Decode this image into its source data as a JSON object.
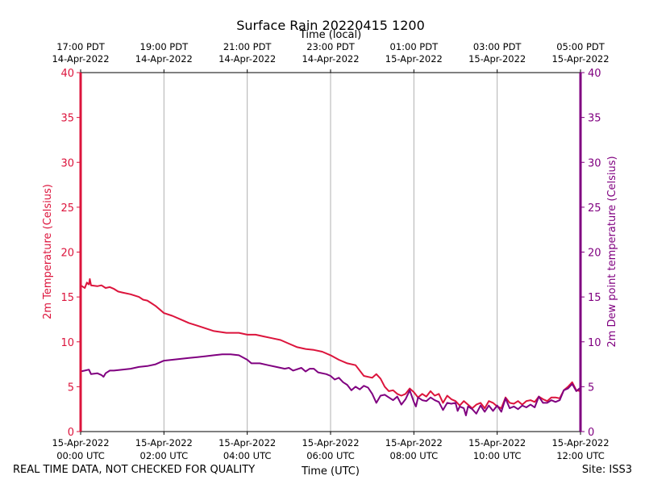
{
  "chart_data": {
    "type": "line",
    "title": "Surface Rain 20220415 1200",
    "top_axis_label": "Time (local)",
    "xlabel": "Time (UTC)",
    "ylabel_left": "2m Temperature (Celsius)",
    "ylabel_right": "2m Dew point temperature (Celsius)",
    "ylim": [
      0,
      40
    ],
    "xlim_hours": [
      0,
      12
    ],
    "y_ticks": [
      "0",
      "5",
      "10",
      "15",
      "20",
      "25",
      "30",
      "35",
      "40"
    ],
    "x_ticks_bottom": [
      {
        "hour": 0,
        "line1": "15-Apr-2022",
        "line2": "00:00 UTC"
      },
      {
        "hour": 2,
        "line1": "15-Apr-2022",
        "line2": "02:00 UTC"
      },
      {
        "hour": 4,
        "line1": "15-Apr-2022",
        "line2": "04:00 UTC"
      },
      {
        "hour": 6,
        "line1": "15-Apr-2022",
        "line2": "06:00 UTC"
      },
      {
        "hour": 8,
        "line1": "15-Apr-2022",
        "line2": "08:00 UTC"
      },
      {
        "hour": 10,
        "line1": "15-Apr-2022",
        "line2": "10:00 UTC"
      },
      {
        "hour": 12,
        "line1": "15-Apr-2022",
        "line2": "12:00 UTC"
      }
    ],
    "x_ticks_top": [
      {
        "hour": 0,
        "line1": "17:00 PDT",
        "line2": "14-Apr-2022"
      },
      {
        "hour": 2,
        "line1": "19:00 PDT",
        "line2": "14-Apr-2022"
      },
      {
        "hour": 4,
        "line1": "21:00 PDT",
        "line2": "14-Apr-2022"
      },
      {
        "hour": 6,
        "line1": "23:00 PDT",
        "line2": "14-Apr-2022"
      },
      {
        "hour": 8,
        "line1": "01:00 PDT",
        "line2": "15-Apr-2022"
      },
      {
        "hour": 10,
        "line1": "03:00 PDT",
        "line2": "15-Apr-2022"
      },
      {
        "hour": 12,
        "line1": "05:00 PDT",
        "line2": "15-Apr-2022"
      }
    ],
    "series": [
      {
        "name": "2m Temperature",
        "color": "#dc143c",
        "axis": "left",
        "points": [
          [
            0,
            16.3
          ],
          [
            0.1,
            16.0
          ],
          [
            0.15,
            16.6
          ],
          [
            0.2,
            16.4
          ],
          [
            0.22,
            17.0
          ],
          [
            0.25,
            16.3
          ],
          [
            0.4,
            16.2
          ],
          [
            0.5,
            16.3
          ],
          [
            0.6,
            16.0
          ],
          [
            0.7,
            16.1
          ],
          [
            0.8,
            15.9
          ],
          [
            0.9,
            15.6
          ],
          [
            1.0,
            15.5
          ],
          [
            1.2,
            15.3
          ],
          [
            1.4,
            15.0
          ],
          [
            1.5,
            14.7
          ],
          [
            1.6,
            14.6
          ],
          [
            1.7,
            14.3
          ],
          [
            1.8,
            14.0
          ],
          [
            1.9,
            13.6
          ],
          [
            2.0,
            13.2
          ],
          [
            2.2,
            12.9
          ],
          [
            2.4,
            12.5
          ],
          [
            2.6,
            12.1
          ],
          [
            2.8,
            11.8
          ],
          [
            3.0,
            11.5
          ],
          [
            3.2,
            11.2
          ],
          [
            3.5,
            11.0
          ],
          [
            3.8,
            11.0
          ],
          [
            4.0,
            10.8
          ],
          [
            4.2,
            10.8
          ],
          [
            4.4,
            10.6
          ],
          [
            4.6,
            10.4
          ],
          [
            4.8,
            10.2
          ],
          [
            5.0,
            9.8
          ],
          [
            5.2,
            9.4
          ],
          [
            5.4,
            9.2
          ],
          [
            5.6,
            9.1
          ],
          [
            5.8,
            8.9
          ],
          [
            6.0,
            8.5
          ],
          [
            6.2,
            8.0
          ],
          [
            6.4,
            7.6
          ],
          [
            6.6,
            7.4
          ],
          [
            6.8,
            6.2
          ],
          [
            7.0,
            6.0
          ],
          [
            7.1,
            6.4
          ],
          [
            7.2,
            5.9
          ],
          [
            7.3,
            5.0
          ],
          [
            7.4,
            4.5
          ],
          [
            7.5,
            4.6
          ],
          [
            7.6,
            4.2
          ],
          [
            7.7,
            4.0
          ],
          [
            7.8,
            4.2
          ],
          [
            7.9,
            4.8
          ],
          [
            8.0,
            4.4
          ],
          [
            8.1,
            3.8
          ],
          [
            8.2,
            4.2
          ],
          [
            8.3,
            3.9
          ],
          [
            8.4,
            4.5
          ],
          [
            8.5,
            4.0
          ],
          [
            8.6,
            4.2
          ],
          [
            8.7,
            3.2
          ],
          [
            8.8,
            4.0
          ],
          [
            8.9,
            3.6
          ],
          [
            9.0,
            3.4
          ],
          [
            9.1,
            2.9
          ],
          [
            9.2,
            3.4
          ],
          [
            9.3,
            3.0
          ],
          [
            9.4,
            2.6
          ],
          [
            9.5,
            3.0
          ],
          [
            9.6,
            3.2
          ],
          [
            9.7,
            2.6
          ],
          [
            9.8,
            3.4
          ],
          [
            9.9,
            3.2
          ],
          [
            10.0,
            2.8
          ],
          [
            10.1,
            2.6
          ],
          [
            10.2,
            3.8
          ],
          [
            10.3,
            3.2
          ],
          [
            10.4,
            3.1
          ],
          [
            10.5,
            3.4
          ],
          [
            10.6,
            3.0
          ],
          [
            10.7,
            3.4
          ],
          [
            10.8,
            3.5
          ],
          [
            10.9,
            3.3
          ],
          [
            11.0,
            3.9
          ],
          [
            11.1,
            3.6
          ],
          [
            11.2,
            3.4
          ],
          [
            11.3,
            3.8
          ],
          [
            11.4,
            3.8
          ],
          [
            11.5,
            3.7
          ],
          [
            11.6,
            4.6
          ],
          [
            11.7,
            5.0
          ],
          [
            11.8,
            5.5
          ],
          [
            11.9,
            4.6
          ],
          [
            12.0,
            4.5
          ]
        ]
      },
      {
        "name": "2m Dew point temperature",
        "color": "#800080",
        "axis": "right",
        "points": [
          [
            0,
            6.7
          ],
          [
            0.1,
            6.8
          ],
          [
            0.2,
            6.9
          ],
          [
            0.25,
            6.4
          ],
          [
            0.4,
            6.5
          ],
          [
            0.5,
            6.3
          ],
          [
            0.55,
            6.1
          ],
          [
            0.6,
            6.5
          ],
          [
            0.7,
            6.8
          ],
          [
            0.8,
            6.8
          ],
          [
            1.0,
            6.9
          ],
          [
            1.2,
            7.0
          ],
          [
            1.4,
            7.2
          ],
          [
            1.6,
            7.3
          ],
          [
            1.8,
            7.5
          ],
          [
            2.0,
            7.9
          ],
          [
            2.2,
            8.0
          ],
          [
            2.4,
            8.1
          ],
          [
            2.6,
            8.2
          ],
          [
            2.8,
            8.3
          ],
          [
            3.0,
            8.4
          ],
          [
            3.2,
            8.5
          ],
          [
            3.4,
            8.6
          ],
          [
            3.6,
            8.6
          ],
          [
            3.8,
            8.5
          ],
          [
            4.0,
            8.0
          ],
          [
            4.1,
            7.6
          ],
          [
            4.3,
            7.6
          ],
          [
            4.5,
            7.4
          ],
          [
            4.7,
            7.2
          ],
          [
            4.9,
            7.0
          ],
          [
            5.0,
            7.1
          ],
          [
            5.1,
            6.8
          ],
          [
            5.3,
            7.1
          ],
          [
            5.4,
            6.7
          ],
          [
            5.5,
            7.0
          ],
          [
            5.6,
            7.0
          ],
          [
            5.7,
            6.6
          ],
          [
            5.9,
            6.4
          ],
          [
            6.0,
            6.2
          ],
          [
            6.1,
            5.8
          ],
          [
            6.2,
            6.0
          ],
          [
            6.3,
            5.5
          ],
          [
            6.4,
            5.2
          ],
          [
            6.5,
            4.6
          ],
          [
            6.6,
            5.0
          ],
          [
            6.7,
            4.7
          ],
          [
            6.8,
            5.1
          ],
          [
            6.9,
            4.9
          ],
          [
            7.0,
            4.2
          ],
          [
            7.1,
            3.2
          ],
          [
            7.2,
            4.0
          ],
          [
            7.3,
            4.1
          ],
          [
            7.4,
            3.8
          ],
          [
            7.5,
            3.5
          ],
          [
            7.6,
            3.9
          ],
          [
            7.7,
            3.0
          ],
          [
            7.8,
            3.6
          ],
          [
            7.9,
            4.6
          ],
          [
            8.0,
            3.3
          ],
          [
            8.05,
            2.8
          ],
          [
            8.1,
            3.8
          ],
          [
            8.2,
            3.5
          ],
          [
            8.3,
            3.4
          ],
          [
            8.4,
            3.8
          ],
          [
            8.5,
            3.5
          ],
          [
            8.6,
            3.3
          ],
          [
            8.7,
            2.4
          ],
          [
            8.8,
            3.2
          ],
          [
            8.9,
            3.1
          ],
          [
            9.0,
            3.2
          ],
          [
            9.05,
            2.3
          ],
          [
            9.1,
            2.8
          ],
          [
            9.2,
            2.6
          ],
          [
            9.25,
            1.8
          ],
          [
            9.3,
            2.8
          ],
          [
            9.4,
            2.5
          ],
          [
            9.5,
            2.0
          ],
          [
            9.6,
            2.9
          ],
          [
            9.7,
            2.2
          ],
          [
            9.8,
            2.9
          ],
          [
            9.9,
            2.3
          ],
          [
            10.0,
            2.9
          ],
          [
            10.1,
            2.2
          ],
          [
            10.2,
            3.7
          ],
          [
            10.3,
            2.6
          ],
          [
            10.4,
            2.8
          ],
          [
            10.5,
            2.5
          ],
          [
            10.6,
            2.9
          ],
          [
            10.7,
            2.7
          ],
          [
            10.8,
            3.0
          ],
          [
            10.9,
            2.7
          ],
          [
            11.0,
            3.9
          ],
          [
            11.1,
            3.2
          ],
          [
            11.2,
            3.2
          ],
          [
            11.3,
            3.5
          ],
          [
            11.4,
            3.3
          ],
          [
            11.5,
            3.5
          ],
          [
            11.6,
            4.6
          ],
          [
            11.7,
            4.8
          ],
          [
            11.8,
            5.3
          ],
          [
            11.9,
            4.5
          ],
          [
            12.0,
            4.9
          ]
        ]
      }
    ]
  },
  "footer": {
    "disclaimer": "REAL TIME DATA, NOT CHECKED FOR QUALITY",
    "site": "Site: ISS3"
  }
}
